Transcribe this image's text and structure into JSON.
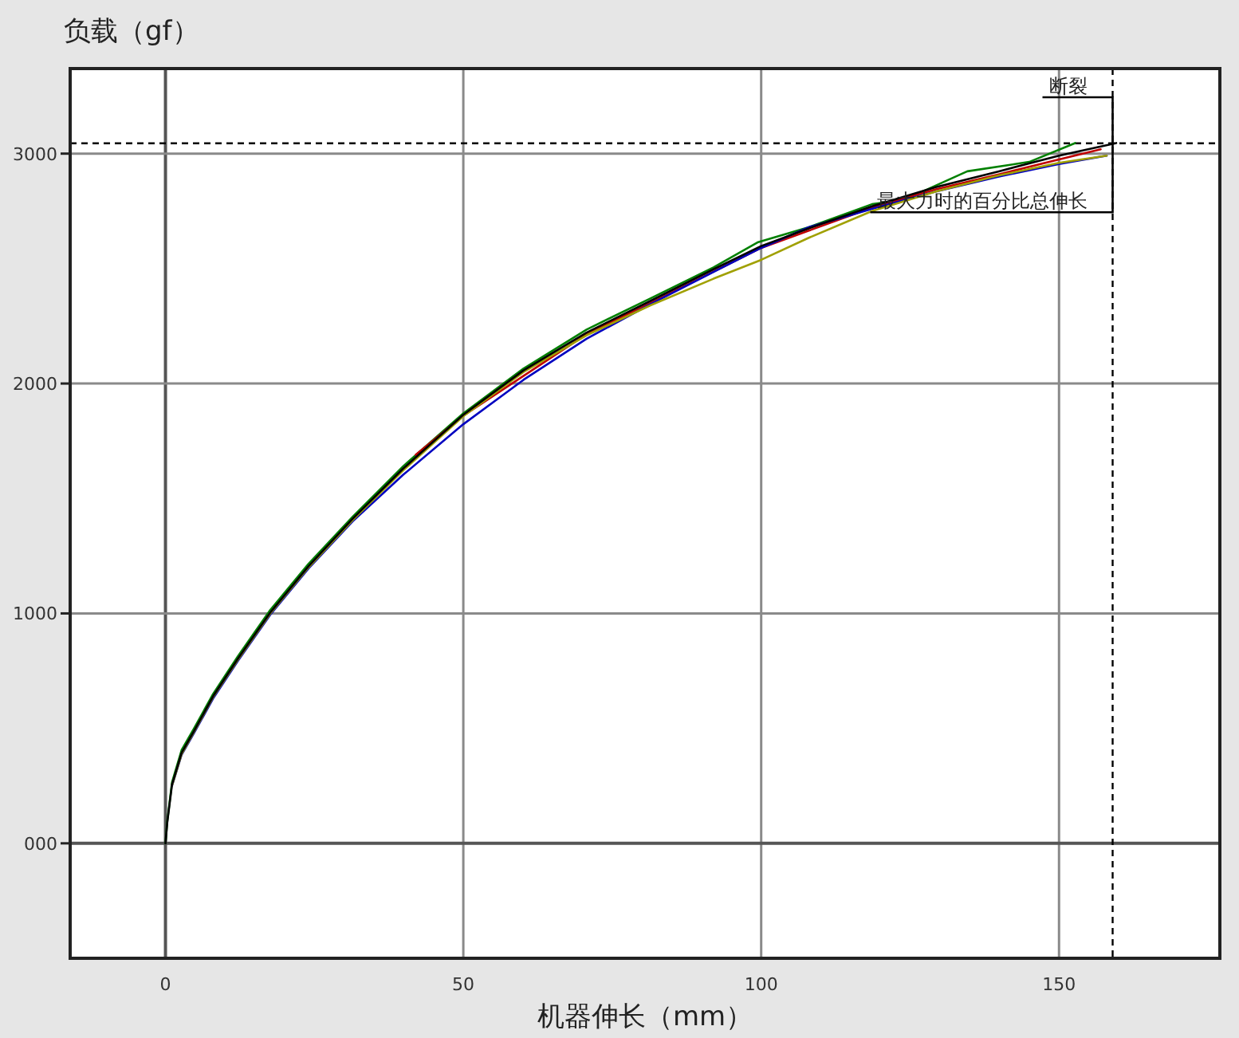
{
  "chart_data": {
    "type": "line",
    "xlabel": "机器伸长（mm）",
    "ylabel": "负载（gf）",
    "xlim": [
      -16,
      177
    ],
    "ylim": [
      -500,
      3370
    ],
    "xticks": [
      0,
      50,
      100,
      150
    ],
    "yticks": [
      {
        "value": 0,
        "label": "000"
      },
      1000,
      2000,
      3000
    ],
    "grid": true,
    "ref_lines": [
      {
        "axis": "y",
        "value": 3045,
        "line_style": "dashed",
        "color": "#000000"
      },
      {
        "axis": "x",
        "value": 159,
        "line_style": "dashed",
        "color": "#000000"
      }
    ],
    "annotations": [
      {
        "text": "断裂",
        "x": 159,
        "y": 3245
      },
      {
        "text": "最大力时的百分比总伸长",
        "x": 159,
        "y": 2745
      }
    ],
    "series": [
      {
        "color": "#008000",
        "x": [
          0,
          0.3,
          1.1,
          2.7,
          4.8,
          8,
          12.2,
          17.6,
          24,
          31.4,
          39.9,
          50,
          60.1,
          70.7,
          81.4,
          92,
          99.5,
          108,
          118.6,
          124,
          134.6,
          145,
          152.7
        ],
        "values": [
          0,
          95,
          265,
          405,
          500,
          650,
          815,
          1015,
          1215,
          1420,
          1640,
          1870,
          2065,
          2235,
          2370,
          2505,
          2615,
          2680,
          2780,
          2799,
          2923,
          2964,
          3046
        ]
      },
      {
        "color": "#c00000",
        "x": [
          42,
          50,
          70.7,
          81.4,
          100,
          108,
          118.6,
          129.3,
          139.9,
          150,
          157
        ],
        "values": [
          1690,
          1860,
          2215,
          2350,
          2590,
          2665,
          2765,
          2845,
          2910,
          2975,
          3019
        ]
      },
      {
        "color": "#0000c0",
        "x": [
          1.1,
          2.7,
          4.8,
          8,
          12.2,
          17.6,
          24,
          31.4,
          39.9,
          50,
          60.1,
          70.7,
          81.4,
          92,
          100,
          108,
          118.6,
          129.3,
          139.9,
          150,
          158
        ],
        "values": [
          250,
          385,
          480,
          630,
          795,
          995,
          1195,
          1400,
          1603,
          1823,
          2016,
          2195,
          2345,
          2485,
          2590,
          2680,
          2760,
          2835,
          2900,
          2955,
          2991
        ]
      },
      {
        "color": "#a0a000",
        "x": [
          1.1,
          2.7,
          4.8,
          8,
          12.2,
          17.6,
          24,
          31.4,
          39.9,
          50,
          60.1,
          70.7,
          81.4,
          92,
          100,
          108,
          118.6,
          129.3,
          139.9,
          150,
          158
        ],
        "values": [
          252,
          388,
          485,
          636,
          800,
          1000,
          1200,
          1405,
          1622,
          1858,
          2050,
          2210,
          2340,
          2456,
          2538,
          2634,
          2750,
          2835,
          2905,
          2960,
          2991
        ]
      },
      {
        "color": "#000000",
        "x": [
          0,
          0.3,
          1.1,
          2.7,
          4.8,
          8,
          12.2,
          17.6,
          24,
          31.4,
          39.9,
          50,
          60.1,
          70.7,
          81.4,
          92,
          100,
          108,
          118.6,
          129.3,
          139.9,
          150,
          159.6
        ],
        "values": [
          0,
          91,
          256,
          393,
          489,
          640,
          805,
          1004,
          1205,
          1411,
          1630,
          1864,
          2057,
          2222,
          2359,
          2497,
          2598,
          2675,
          2771,
          2854,
          2923,
          2991,
          3046
        ]
      }
    ]
  }
}
